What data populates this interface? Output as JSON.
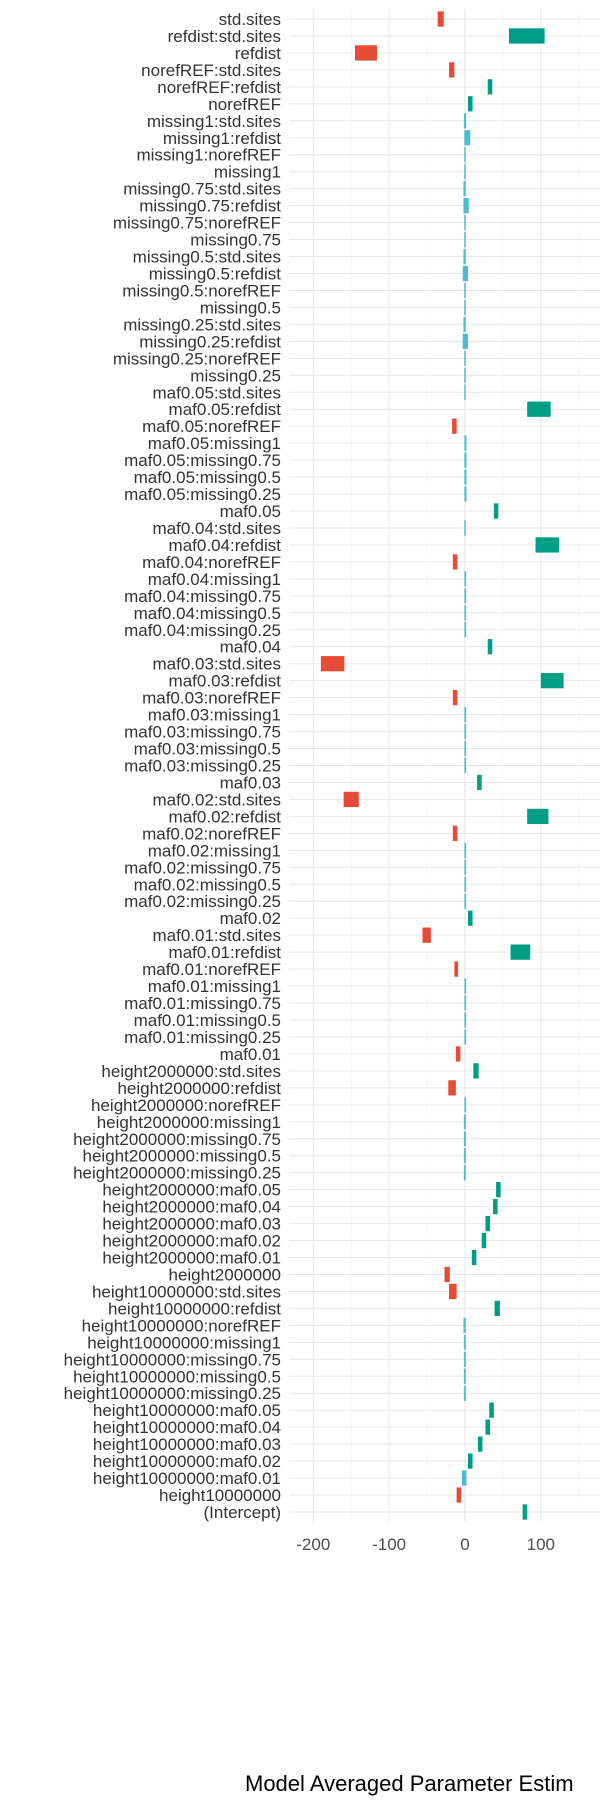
{
  "chart_data": {
    "type": "bar",
    "orientation": "horizontal",
    "xlabel": "Model Averaged Parameter Estim",
    "ylabel": "",
    "title": "",
    "xlim": [
      -232,
      178
    ],
    "xticks": [
      -200,
      -100,
      0,
      100
    ],
    "xtick_labels": [
      "-200",
      "-100",
      "0",
      "100"
    ],
    "grid": true,
    "legend": "none",
    "colors": {
      "positive": "#009E86",
      "negative": "#E64B35",
      "near_zero": "#4DBBD5"
    },
    "bars": [
      {
        "label": "std.sites",
        "lo": -36,
        "hi": -28
      },
      {
        "label": "refdist:std.sites",
        "lo": 58,
        "hi": 105
      },
      {
        "label": "refdist",
        "lo": -145,
        "hi": -116
      },
      {
        "label": "norefREF:std.sites",
        "lo": -21,
        "hi": -14
      },
      {
        "label": "norefREF:refdist",
        "lo": 30,
        "hi": 36
      },
      {
        "label": "norefREF",
        "lo": 4,
        "hi": 10
      },
      {
        "label": "missing1:std.sites",
        "lo": -1.5,
        "hi": 1.5
      },
      {
        "label": "missing1:refdist",
        "lo": -1,
        "hi": 7
      },
      {
        "label": "missing1:norefREF",
        "lo": -0.8,
        "hi": 0.8
      },
      {
        "label": "missing1",
        "lo": -0.4,
        "hi": 0.4
      },
      {
        "label": "missing0.75:std.sites",
        "lo": -2,
        "hi": 1
      },
      {
        "label": "missing0.75:refdist",
        "lo": -2,
        "hi": 5
      },
      {
        "label": "missing0.75:norefREF",
        "lo": -0.8,
        "hi": 0.8
      },
      {
        "label": "missing0.75",
        "lo": -0.4,
        "hi": 0.4
      },
      {
        "label": "missing0.5:std.sites",
        "lo": -2,
        "hi": 1
      },
      {
        "label": "missing0.5:refdist",
        "lo": -3,
        "hi": 4
      },
      {
        "label": "missing0.5:norefREF",
        "lo": -0.8,
        "hi": 0.8
      },
      {
        "label": "missing0.5",
        "lo": -0.4,
        "hi": 0.4
      },
      {
        "label": "missing0.25:std.sites",
        "lo": -2,
        "hi": 1
      },
      {
        "label": "missing0.25:refdist",
        "lo": -3,
        "hi": 4
      },
      {
        "label": "missing0.25:norefREF",
        "lo": -0.8,
        "hi": 0.8
      },
      {
        "label": "missing0.25",
        "lo": -0.4,
        "hi": 0.4
      },
      {
        "label": "maf0.05:std.sites",
        "lo": -0.4,
        "hi": 0.4
      },
      {
        "label": "maf0.05:refdist",
        "lo": 82,
        "hi": 113
      },
      {
        "label": "maf0.05:norefREF",
        "lo": -17,
        "hi": -11
      },
      {
        "label": "maf0.05:missing1",
        "lo": -0.8,
        "hi": 2
      },
      {
        "label": "maf0.05:missing0.75",
        "lo": -0.8,
        "hi": 2
      },
      {
        "label": "maf0.05:missing0.5",
        "lo": -0.8,
        "hi": 2
      },
      {
        "label": "maf0.05:missing0.25",
        "lo": -0.8,
        "hi": 2
      },
      {
        "label": "maf0.05",
        "lo": 38,
        "hi": 44
      },
      {
        "label": "maf0.04:std.sites",
        "lo": -0.4,
        "hi": 0.4
      },
      {
        "label": "maf0.04:refdist",
        "lo": 93,
        "hi": 124
      },
      {
        "label": "maf0.04:norefREF",
        "lo": -16,
        "hi": -10
      },
      {
        "label": "maf0.04:missing1",
        "lo": -0.8,
        "hi": 1.5
      },
      {
        "label": "maf0.04:missing0.75",
        "lo": -0.8,
        "hi": 1.5
      },
      {
        "label": "maf0.04:missing0.5",
        "lo": -0.8,
        "hi": 1.5
      },
      {
        "label": "maf0.04:missing0.25",
        "lo": -0.8,
        "hi": 1.5
      },
      {
        "label": "maf0.04",
        "lo": 30,
        "hi": 36
      },
      {
        "label": "maf0.03:std.sites",
        "lo": -190,
        "hi": -159
      },
      {
        "label": "maf0.03:refdist",
        "lo": 100,
        "hi": 130
      },
      {
        "label": "maf0.03:norefREF",
        "lo": -16,
        "hi": -10
      },
      {
        "label": "maf0.03:missing1",
        "lo": -0.8,
        "hi": 1.5
      },
      {
        "label": "maf0.03:missing0.75",
        "lo": -0.8,
        "hi": 1.5
      },
      {
        "label": "maf0.03:missing0.5",
        "lo": -0.8,
        "hi": 1.5
      },
      {
        "label": "maf0.03:missing0.25",
        "lo": -0.8,
        "hi": 1.5
      },
      {
        "label": "maf0.03",
        "lo": 16,
        "hi": 22
      },
      {
        "label": "maf0.02:std.sites",
        "lo": -160,
        "hi": -140
      },
      {
        "label": "maf0.02:refdist",
        "lo": 82,
        "hi": 110
      },
      {
        "label": "maf0.02:norefREF",
        "lo": -16,
        "hi": -10
      },
      {
        "label": "maf0.02:missing1",
        "lo": -0.8,
        "hi": 1.5
      },
      {
        "label": "maf0.02:missing0.75",
        "lo": -0.8,
        "hi": 1.5
      },
      {
        "label": "maf0.02:missing0.5",
        "lo": -0.8,
        "hi": 1.5
      },
      {
        "label": "maf0.02:missing0.25",
        "lo": -0.8,
        "hi": 1.5
      },
      {
        "label": "maf0.02",
        "lo": 4,
        "hi": 10
      },
      {
        "label": "maf0.01:std.sites",
        "lo": -56,
        "hi": -45
      },
      {
        "label": "maf0.01:refdist",
        "lo": 60,
        "hi": 86
      },
      {
        "label": "maf0.01:norefREF",
        "lo": -14,
        "hi": -9
      },
      {
        "label": "maf0.01:missing1",
        "lo": -0.8,
        "hi": 1.5
      },
      {
        "label": "maf0.01:missing0.75",
        "lo": -0.8,
        "hi": 1.5
      },
      {
        "label": "maf0.01:missing0.5",
        "lo": -0.8,
        "hi": 1.5
      },
      {
        "label": "maf0.01:missing0.25",
        "lo": -0.8,
        "hi": 1.5
      },
      {
        "label": "maf0.01",
        "lo": -12,
        "hi": -6
      },
      {
        "label": "height2000000:std.sites",
        "lo": 11,
        "hi": 18
      },
      {
        "label": "height2000000:refdist",
        "lo": -22,
        "hi": -12
      },
      {
        "label": "height2000000:norefREF",
        "lo": -0.8,
        "hi": 1.5
      },
      {
        "label": "height2000000:missing1",
        "lo": -1.5,
        "hi": 1
      },
      {
        "label": "height2000000:missing0.75",
        "lo": -1.5,
        "hi": 1
      },
      {
        "label": "height2000000:missing0.5",
        "lo": -1.5,
        "hi": 1
      },
      {
        "label": "height2000000:missing0.25",
        "lo": -1.5,
        "hi": 1
      },
      {
        "label": "height2000000:maf0.05",
        "lo": 41,
        "hi": 47
      },
      {
        "label": "height2000000:maf0.04",
        "lo": 37,
        "hi": 43
      },
      {
        "label": "height2000000:maf0.03",
        "lo": 27,
        "hi": 33
      },
      {
        "label": "height2000000:maf0.02",
        "lo": 22,
        "hi": 28
      },
      {
        "label": "height2000000:maf0.01",
        "lo": 9,
        "hi": 15
      },
      {
        "label": "height2000000",
        "lo": -27,
        "hi": -20
      },
      {
        "label": "height10000000:std.sites",
        "lo": -21,
        "hi": -11
      },
      {
        "label": "height10000000:refdist",
        "lo": 39,
        "hi": 46
      },
      {
        "label": "height10000000:norefREF",
        "lo": -2,
        "hi": 1
      },
      {
        "label": "height10000000:missing1",
        "lo": -1.5,
        "hi": 1
      },
      {
        "label": "height10000000:missing0.75",
        "lo": -1.5,
        "hi": 1
      },
      {
        "label": "height10000000:missing0.5",
        "lo": -1.5,
        "hi": 1
      },
      {
        "label": "height10000000:missing0.25",
        "lo": -1.5,
        "hi": 1
      },
      {
        "label": "height10000000:maf0.05",
        "lo": 32,
        "hi": 38
      },
      {
        "label": "height10000000:maf0.04",
        "lo": 27,
        "hi": 33
      },
      {
        "label": "height10000000:maf0.03",
        "lo": 17,
        "hi": 23
      },
      {
        "label": "height10000000:maf0.02",
        "lo": 4,
        "hi": 10
      },
      {
        "label": "height10000000:maf0.01",
        "lo": -4,
        "hi": 2
      },
      {
        "label": "height10000000",
        "lo": -11,
        "hi": -5
      },
      {
        "label": "(Intercept)",
        "lo": 76,
        "hi": 82
      }
    ]
  }
}
